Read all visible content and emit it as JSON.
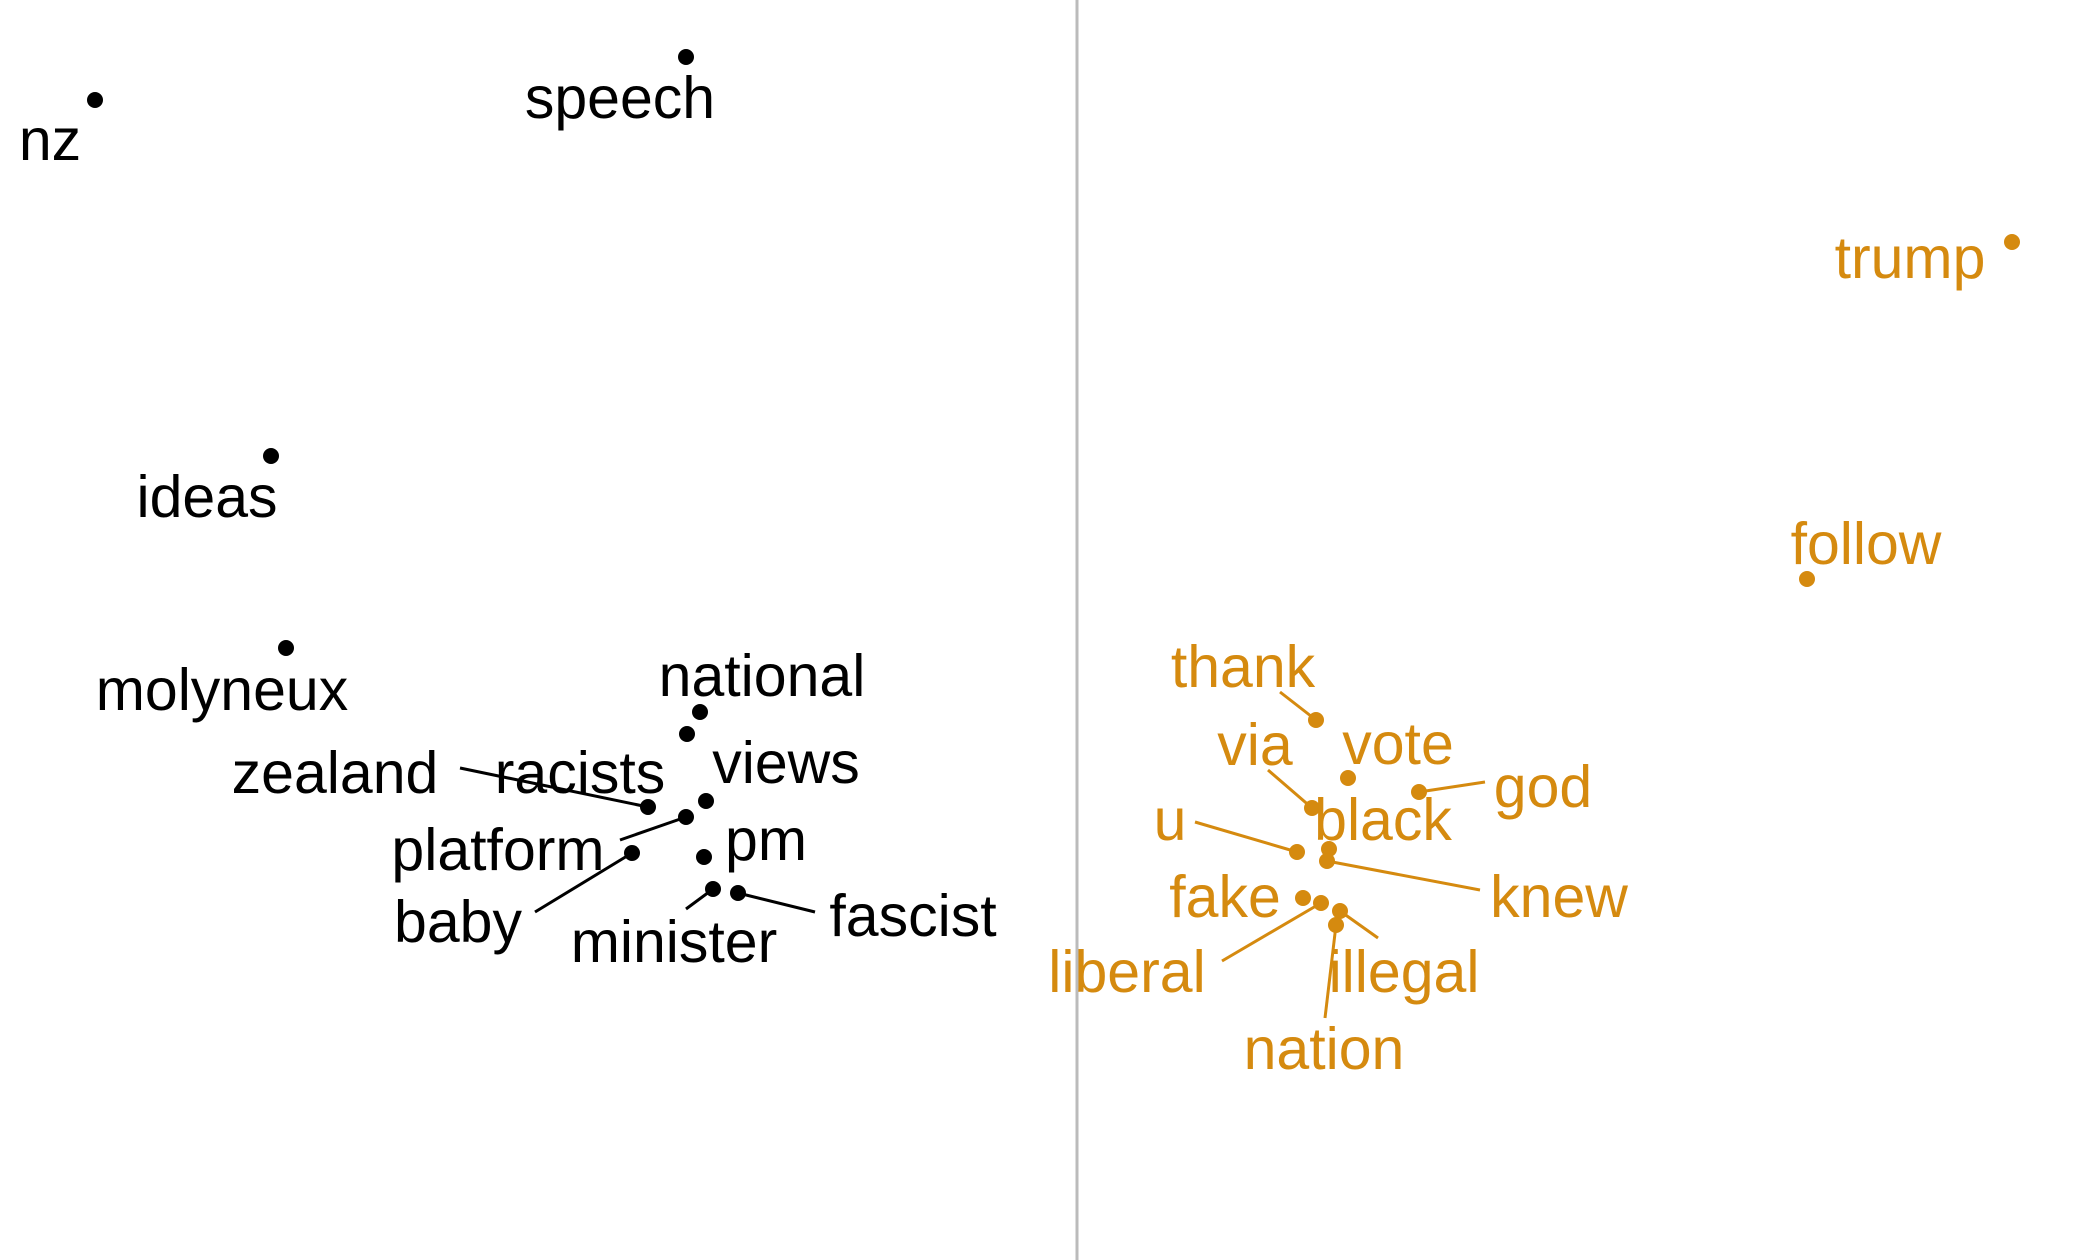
{
  "chart_data": {
    "type": "scatter",
    "title": "",
    "xlabel": "",
    "ylabel": "",
    "grid": false,
    "legend": "none",
    "divider_line": true,
    "colors": {
      "left_group": "#000000",
      "right_group": "#D58A0F",
      "divider": "#BBBBBB"
    },
    "series": [
      {
        "color": "#000000",
        "points": [
          {
            "word": "nz",
            "x": 0.0,
            "y": 1.0
          },
          {
            "word": "speech",
            "x": 1.6,
            "y": 1.05
          },
          {
            "word": "ideas",
            "x": 0.5,
            "y": 0.55
          },
          {
            "word": "molyneux",
            "x": 0.5,
            "y": 0.33
          },
          {
            "word": "national",
            "x": 1.6,
            "y": 0.26
          },
          {
            "word": "views",
            "x": 1.57,
            "y": 0.23
          },
          {
            "word": "zealand",
            "x": 1.5,
            "y": 0.16
          },
          {
            "word": "racists",
            "x": 1.6,
            "y": 0.17
          },
          {
            "word": "platform",
            "x": 1.56,
            "y": 0.15
          },
          {
            "word": "baby",
            "x": 1.4,
            "y": 0.11
          },
          {
            "word": "pm",
            "x": 1.6,
            "y": 0.11
          },
          {
            "word": "minister",
            "x": 1.64,
            "y": 0.07
          },
          {
            "word": "fascist",
            "x": 1.7,
            "y": 0.07
          }
        ]
      },
      {
        "color": "#D58A0F",
        "points": [
          {
            "word": "trump",
            "x": 4.9,
            "y": 0.8
          },
          {
            "word": "follow",
            "x": 4.4,
            "y": 0.44
          },
          {
            "word": "thank",
            "x": 3.2,
            "y": 0.28
          },
          {
            "word": "vote",
            "x": 3.27,
            "y": 0.22
          },
          {
            "word": "god",
            "x": 3.45,
            "y": 0.2
          },
          {
            "word": "via",
            "x": 3.19,
            "y": 0.18
          },
          {
            "word": "black",
            "x": 3.23,
            "y": 0.15
          },
          {
            "word": "u",
            "x": 3.15,
            "y": 0.14
          },
          {
            "word": "knew",
            "x": 3.22,
            "y": 0.14
          },
          {
            "word": "fake",
            "x": 3.17,
            "y": 0.09
          },
          {
            "word": "liberal",
            "x": 3.2,
            "y": 0.08
          },
          {
            "word": "illegal",
            "x": 3.25,
            "y": 0.07
          },
          {
            "word": "nation",
            "x": 3.24,
            "y": 0.06
          }
        ]
      }
    ]
  }
}
